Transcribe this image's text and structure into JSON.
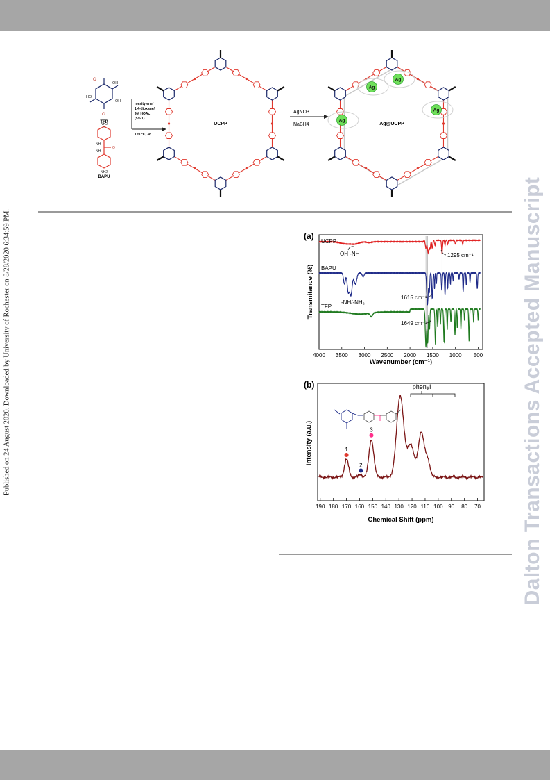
{
  "margins": {
    "left_vertical": "Published on 24 August 2020. Downloaded by University of Rochester on 8/28/2020 6:34:59 PM.",
    "right_watermark": "Dalton Transactions Accepted Manuscript"
  },
  "scheme": {
    "tfp_label": "TFP",
    "plus": "+",
    "bapu_label": "BAPU",
    "conditions": [
      "mesitylene/",
      "1,4-dioxane/",
      "9M HOAc",
      "(5/5/1)"
    ],
    "temperature": "120 °C, 3d",
    "ucpp_label": "UCPP",
    "reagent_top": "AgNO3",
    "reagent_bottom": "NaBH4",
    "product_label": "Ag@UCPP",
    "ag_label": "Ag",
    "atom_labels": {
      "oh": "OH",
      "ho": "HO",
      "nh2": "NH2",
      "nh": "NH",
      "o": "O"
    },
    "colors": {
      "framework_blue": "#1c2a6b",
      "urea_red": "#e0392e",
      "ag_green": "#6fe05a"
    }
  },
  "ftir": {
    "panel_label": "(a)",
    "ylabel": "Transmitance (%)",
    "xlabel": "Wavenumber (cm⁻¹)",
    "x_ticks": [
      "4000",
      "3500",
      "3000",
      "2500",
      "2000",
      "1500",
      "1000",
      "500"
    ],
    "annotations": {
      "oh_nh": "OH  -NH",
      "nh_nh2": "-NH/-NH₂",
      "a1295": "1295 cm⁻¹",
      "a1615": "1615 cm⁻¹",
      "a1649": "1649 cm⁻¹"
    },
    "chart_data": {
      "type": "line",
      "xlim": [
        4000,
        400
      ],
      "x_reversed": true,
      "y_ticks_shown": false,
      "series": [
        {
          "name": "UCPP",
          "color": "#e02020",
          "offset": 0,
          "amp": 0.45,
          "peaks": [
            [
              3400,
              0.15,
              180
            ],
            [
              3200,
              0.12,
              120
            ],
            [
              2900,
              0.06,
              80
            ],
            [
              1649,
              0.55,
              20
            ],
            [
              1600,
              0.85,
              22
            ],
            [
              1560,
              0.6,
              18
            ],
            [
              1510,
              0.55,
              15
            ],
            [
              1450,
              0.35,
              15
            ],
            [
              1295,
              0.9,
              15
            ],
            [
              1230,
              0.35,
              12
            ],
            [
              1170,
              0.3,
              12
            ],
            [
              1000,
              0.25,
              15
            ],
            [
              840,
              0.3,
              12
            ]
          ]
        },
        {
          "name": "BAPU",
          "color": "#1e2a88",
          "offset": 1,
          "amp": 1.0,
          "peaks": [
            [
              3440,
              0.35,
              30
            ],
            [
              3360,
              0.55,
              30
            ],
            [
              3300,
              0.7,
              40
            ],
            [
              3200,
              0.35,
              40
            ],
            [
              3030,
              0.12,
              30
            ],
            [
              1615,
              1.0,
              22
            ],
            [
              1575,
              0.6,
              14
            ],
            [
              1510,
              0.8,
              15
            ],
            [
              1460,
              0.5,
              10
            ],
            [
              1420,
              0.35,
              10
            ],
            [
              1300,
              0.55,
              14
            ],
            [
              1230,
              0.7,
              12
            ],
            [
              1170,
              0.5,
              10
            ],
            [
              1110,
              0.35,
              10
            ],
            [
              1050,
              0.25,
              10
            ],
            [
              920,
              0.2,
              10
            ],
            [
              830,
              0.6,
              12
            ],
            [
              760,
              0.4,
              10
            ],
            [
              680,
              0.3,
              10
            ],
            [
              520,
              0.5,
              12
            ]
          ]
        },
        {
          "name": "TFP",
          "color": "#1f7a1f",
          "offset": 2,
          "amp": 1.0,
          "peaks": [
            [
              3100,
              0.06,
              300
            ],
            [
              2850,
              0.1,
              40
            ],
            [
              1649,
              1.0,
              20
            ],
            [
              1610,
              0.9,
              15
            ],
            [
              1570,
              0.55,
              12
            ],
            [
              1440,
              0.95,
              14
            ],
            [
              1390,
              0.5,
              10
            ],
            [
              1330,
              0.4,
              10
            ],
            [
              1250,
              0.9,
              14
            ],
            [
              1180,
              0.55,
              10
            ],
            [
              1100,
              0.35,
              10
            ],
            [
              1010,
              0.7,
              12
            ],
            [
              960,
              0.5,
              10
            ],
            [
              880,
              0.55,
              10
            ],
            [
              800,
              0.3,
              10
            ],
            [
              700,
              0.85,
              12
            ],
            [
              600,
              0.35,
              10
            ],
            [
              500,
              0.3,
              10
            ]
          ]
        }
      ],
      "marker_lines": [
        1649,
        1615,
        1295
      ]
    }
  },
  "nmr": {
    "panel_label": "(b)",
    "ylabel": "Intensity (a.u.)",
    "xlabel": "Chemical Shift (ppm)",
    "phenyl_label": "phenyl",
    "x_ticks": [
      "190",
      "180",
      "170",
      "160",
      "150",
      "140",
      "130",
      "120",
      "110",
      "100",
      "90",
      "80",
      "70"
    ],
    "peak_labels": [
      "1",
      "2",
      "3"
    ],
    "peak_markers": [
      {
        "label": "1",
        "ppm": 170,
        "color": "#e0392e"
      },
      {
        "label": "2",
        "ppm": 159,
        "color": "#1c2a88"
      },
      {
        "label": "3",
        "ppm": 151,
        "color": "#ff2f8a"
      }
    ],
    "chart_data": {
      "type": "line",
      "xlim": [
        192,
        65
      ],
      "x_reversed": true,
      "y_ticks_shown": false,
      "color": "#7a1414",
      "peaks": [
        [
          170,
          0.22,
          2.2
        ],
        [
          159,
          0.03,
          2.0
        ],
        [
          151,
          0.46,
          2.6
        ],
        [
          129,
          1.0,
          3.8
        ],
        [
          121,
          0.4,
          3.5
        ],
        [
          113,
          0.55,
          3.2
        ],
        [
          108,
          0.2,
          2.5
        ]
      ]
    },
    "inset_colors": {
      "blue": "#1c2a88",
      "red": "#e0392e",
      "pink": "#ff2f8a"
    }
  }
}
